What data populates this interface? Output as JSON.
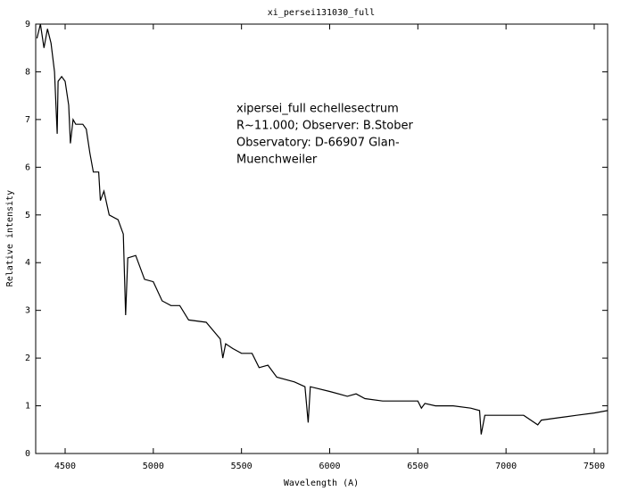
{
  "chart_data": {
    "type": "line",
    "title": "xi_persei131030_full",
    "x_label": "Wavelength (A)",
    "y_label": "Relative intensity",
    "annotation": [
      "xipersei_full echellesectrum",
      "R~11.000; Observer: B.Stober",
      "Observatory: D-66907 Glan-",
      "Muenchweiler"
    ],
    "xlim": [
      4333,
      7576
    ],
    "ylim": [
      0,
      9
    ],
    "xticks": [
      4500,
      5000,
      5500,
      6000,
      6500,
      7000,
      7500
    ],
    "yticks": [
      0,
      1,
      2,
      3,
      4,
      5,
      6,
      7,
      8,
      9
    ],
    "series": [
      {
        "color": "#000000",
        "x": [
          4340,
          4360,
          4380,
          4400,
          4420,
          4440,
          4455,
          4460,
          4480,
          4500,
          4520,
          4530,
          4545,
          4560,
          4600,
          4620,
          4640,
          4660,
          4690,
          4700,
          4720,
          4750,
          4800,
          4830,
          4843,
          4855,
          4900,
          4950,
          5000,
          5050,
          5100,
          5150,
          5200,
          5300,
          5380,
          5394,
          5410,
          5450,
          5500,
          5560,
          5600,
          5650,
          5700,
          5800,
          5860,
          5878,
          5890,
          6000,
          6100,
          6150,
          6200,
          6300,
          6500,
          6520,
          6540,
          6600,
          6700,
          6800,
          6850,
          6859,
          6880,
          7000,
          7100,
          7180,
          7200,
          7300,
          7400,
          7500,
          7576
        ],
        "values": [
          8.7,
          9.0,
          8.5,
          8.9,
          8.6,
          8.0,
          6.7,
          7.8,
          7.9,
          7.8,
          7.3,
          6.5,
          7.0,
          6.9,
          6.9,
          6.8,
          6.3,
          5.9,
          5.9,
          5.3,
          5.5,
          5.0,
          4.9,
          4.6,
          2.9,
          4.1,
          4.15,
          3.65,
          3.6,
          3.2,
          3.1,
          3.1,
          2.8,
          2.75,
          2.4,
          2.0,
          2.3,
          2.2,
          2.1,
          2.1,
          1.8,
          1.85,
          1.6,
          1.5,
          1.4,
          0.65,
          1.4,
          1.3,
          1.2,
          1.25,
          1.15,
          1.1,
          1.1,
          0.95,
          1.05,
          1.0,
          1.0,
          0.95,
          0.9,
          0.4,
          0.8,
          0.8,
          0.8,
          0.6,
          0.7,
          0.75,
          0.8,
          0.85,
          0.9
        ]
      }
    ]
  }
}
